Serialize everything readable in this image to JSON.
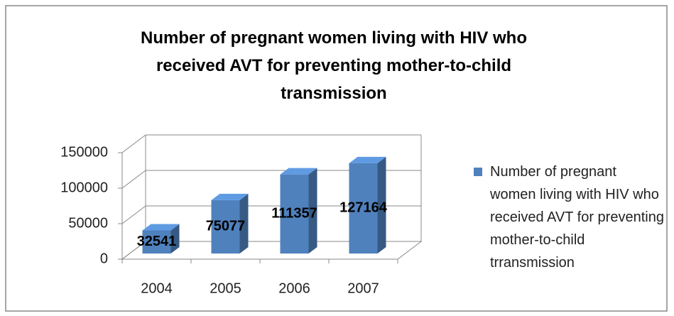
{
  "chart_data": {
    "type": "bar3d",
    "title": "Number of pregnant women living with HIV who received AVT for preventing mother-to-child transmission",
    "categories": [
      "2004",
      "2005",
      "2006",
      "2007"
    ],
    "series": [
      {
        "name": "Number of pregnant women living with HIV who received AVT for preventing mother-to-child trransmission",
        "color": "#4f81bd",
        "values": [
          32541,
          75077,
          111357,
          127164
        ]
      }
    ],
    "ylim": [
      0,
      150000
    ],
    "yticks": [
      0,
      50000,
      100000,
      150000
    ],
    "grid": true,
    "legend": "right",
    "data_labels": true
  }
}
